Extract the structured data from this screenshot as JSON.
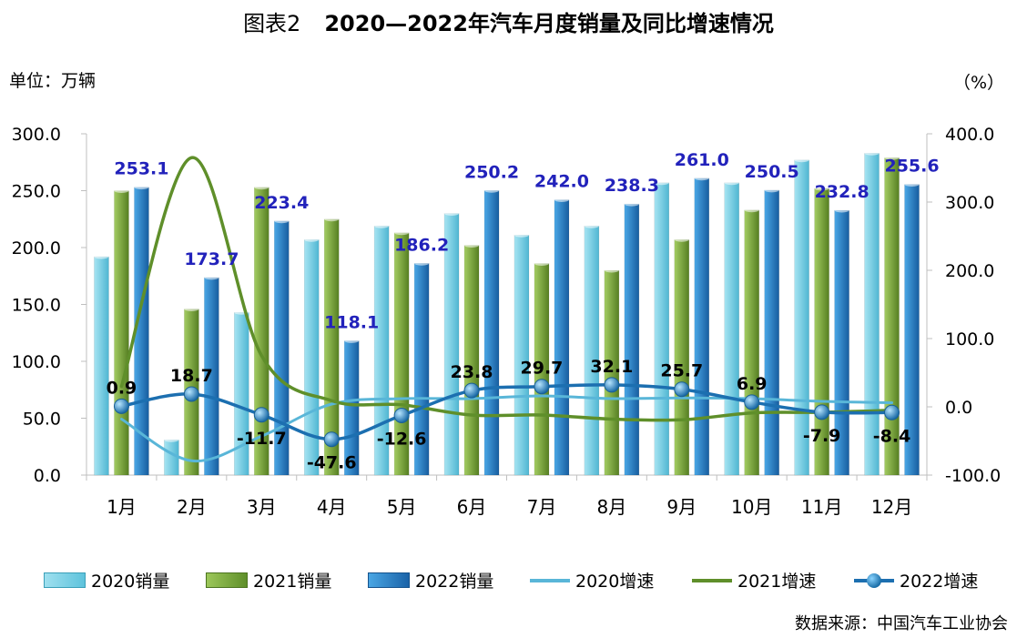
{
  "title": {
    "prefix": "图表2",
    "text": "2020—2022年汽车月度销量及同比增速情况"
  },
  "unit_left": "单位：万辆",
  "unit_right": "（%）",
  "source": "数据来源：中国汽车工业协会",
  "colors": {
    "sales_2020": "#5ec3dc",
    "sales_2021": "#6f9f2f",
    "sales_2022": "#1f78c1",
    "growth_2020": "#59b6d8",
    "growth_2021": "#5f8f2a",
    "growth_2022": "#1c6fb0",
    "bar_label": "#2222bb",
    "point_label": "#000000"
  },
  "chart_data": {
    "type": "bar",
    "categories": [
      "1月",
      "2月",
      "3月",
      "4月",
      "5月",
      "6月",
      "7月",
      "8月",
      "9月",
      "10月",
      "11月",
      "12月"
    ],
    "left_axis": {
      "ylim": [
        0,
        300
      ],
      "ticks": [
        "0.0",
        "50.0",
        "100.0",
        "150.0",
        "200.0",
        "250.0",
        "300.0"
      ]
    },
    "right_axis": {
      "ylim": [
        -100,
        400
      ],
      "ticks": [
        "-100.0",
        "0.0",
        "100.0",
        "200.0",
        "300.0",
        "400.0"
      ]
    },
    "bar_series": [
      {
        "name": "2020销量",
        "values": [
          192,
          31,
          143,
          207,
          219,
          230,
          211,
          219,
          257,
          257,
          277,
          283
        ]
      },
      {
        "name": "2021销量",
        "values": [
          250,
          146,
          253,
          225,
          213,
          202,
          186,
          180,
          207,
          233,
          252,
          279
        ]
      },
      {
        "name": "2022销量",
        "values": [
          253.1,
          173.7,
          223.4,
          118.1,
          186.2,
          250.2,
          242.0,
          238.3,
          261.0,
          250.5,
          232.8,
          255.6
        ],
        "labels": [
          "253.1",
          "173.7",
          "223.4",
          "118.1",
          "186.2",
          "250.2",
          "242.0",
          "238.3",
          "261.0",
          "250.5",
          "232.8",
          "255.6"
        ]
      }
    ],
    "line_series": [
      {
        "name": "2020增速",
        "values": [
          -18,
          -79,
          -43,
          4,
          12,
          12,
          16,
          12,
          13,
          12,
          8,
          6
        ]
      },
      {
        "name": "2021增速",
        "values": [
          30,
          365,
          75,
          9,
          3,
          -12,
          -12,
          -18,
          -19,
          -9,
          -8,
          -5
        ]
      },
      {
        "name": "2022增速",
        "values": [
          0.9,
          18.7,
          -11.7,
          -47.6,
          -12.6,
          23.8,
          29.7,
          32.1,
          25.7,
          6.9,
          -7.9,
          -8.4
        ],
        "labels": [
          "0.9",
          "18.7",
          "-11.7",
          "-47.6",
          "-12.6",
          "23.8",
          "29.7",
          "32.1",
          "25.7",
          "6.9",
          "-7.9",
          "-8.4"
        ]
      }
    ]
  }
}
